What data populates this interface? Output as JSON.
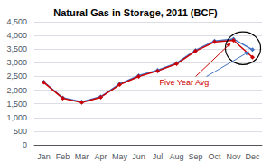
{
  "chart_data": {
    "type": "line",
    "title": "Natural Gas in Storage, 2011 (BCF)",
    "categories": [
      "Jan",
      "Feb",
      "Mar",
      "Apr",
      "May",
      "Jun",
      "Jul",
      "Aug",
      "Sep",
      "Oct",
      "Nov",
      "Dec"
    ],
    "series": [
      {
        "color": "#4472C4",
        "values": [
          2300,
          1720,
          1570,
          1760,
          2230,
          2530,
          2730,
          2990,
          3460,
          3800,
          3870,
          3480
        ]
      },
      {
        "name": "Five Year Avg.",
        "color": "#CC0000",
        "values": [
          2280,
          1700,
          1550,
          1740,
          2200,
          2500,
          2700,
          2960,
          3430,
          3760,
          3820,
          3200
        ]
      }
    ],
    "marker": "diamond",
    "ylim": [
      0,
      4500
    ],
    "yticks": [
      0,
      500,
      {
        "value": 1000,
        "label": "1,000"
      },
      {
        "value": 1500,
        "label": "1,500"
      },
      {
        "value": 2000,
        "label": "2,000"
      },
      {
        "value": 2500,
        "label": "2,500"
      },
      {
        "value": 3000,
        "label": "3,000"
      },
      {
        "value": 3500,
        "label": "3,500"
      },
      {
        "value": 4000,
        "label": "4,000"
      },
      {
        "value": 4500,
        "label": "4,500"
      }
    ],
    "grid": true
  }
}
